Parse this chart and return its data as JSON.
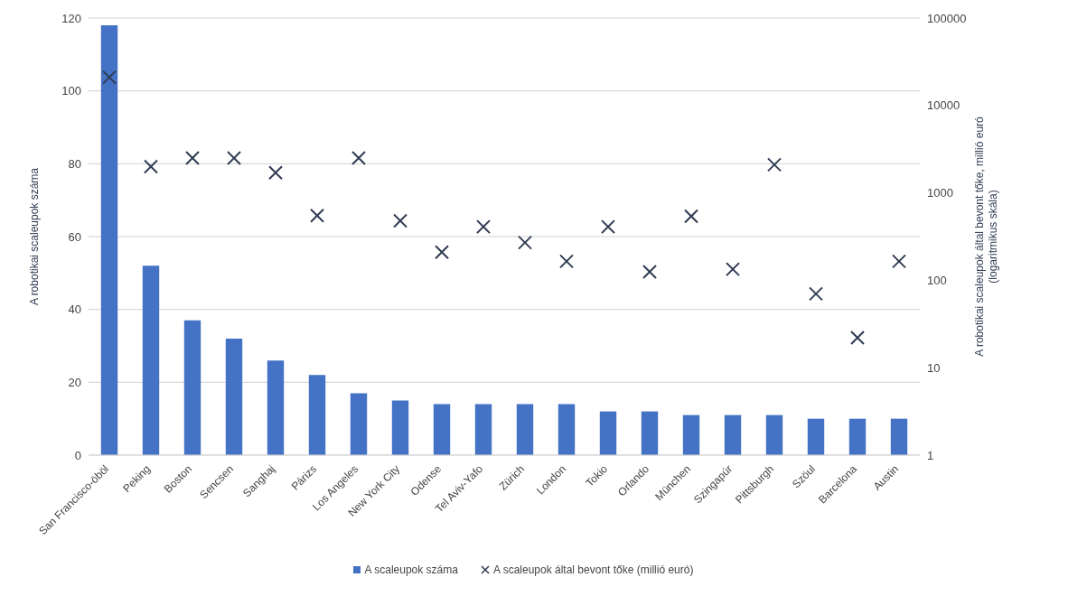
{
  "chart_data": {
    "type": "bar",
    "categories": [
      "San Francisco-öböl",
      "Peking",
      "Boston",
      "Sencsen",
      "Sanghaj",
      "Párizs",
      "Los Angeles",
      "New York City",
      "Odense",
      "Tel Aviv-Yafo",
      "Zürich",
      "London",
      "Tokio",
      "Orlando",
      "München",
      "Szingapúr",
      "Pittsburgh",
      "Szöul",
      "Barcelona",
      "Austin"
    ],
    "series": [
      {
        "name": "A scaleupok száma",
        "color": "#4472c4",
        "values": [
          118,
          52,
          37,
          32,
          26,
          22,
          17,
          15,
          14,
          14,
          14,
          14,
          12,
          12,
          11,
          11,
          11,
          10,
          10,
          10
        ]
      },
      {
        "name": "A scaleupok által bevont tőke (millió euró)",
        "type": "scatter",
        "axis": "y2",
        "color": "#2f3b52",
        "marker": "cross",
        "values": [
          21000,
          2000,
          2500,
          2500,
          1700,
          550,
          2500,
          480,
          210,
          410,
          270,
          165,
          410,
          125,
          540,
          134,
          2100,
          70,
          22,
          165
        ]
      }
    ],
    "ylabel": "A robotikai scaleupok száma",
    "y2label": "A robotikai scaleupok által bevont tőke, millió euró\n(logaritmikus skála)",
    "ylim": [
      0,
      120
    ],
    "yticks": [
      0,
      20,
      40,
      60,
      80,
      100,
      120
    ],
    "y2lim": [
      1,
      100000
    ],
    "y2ticks": [
      1,
      10,
      100,
      1000,
      10000,
      100000
    ],
    "log": "y2",
    "grid": "y",
    "legend": "bottom"
  }
}
